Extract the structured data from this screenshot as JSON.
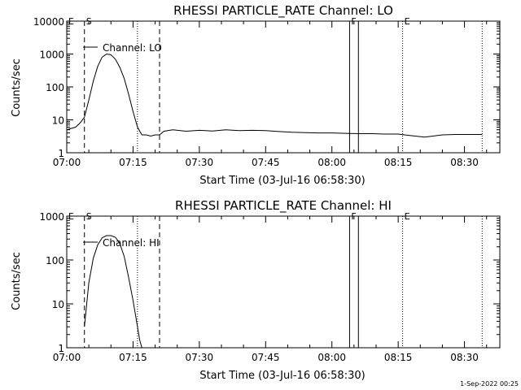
{
  "footer_stamp": "1-Sep-2022 00:25",
  "chart_data": [
    {
      "type": "line",
      "title": "RHESSI PARTICLE_RATE Channel: LO",
      "xlabel": "Start Time (03-Jul-16 06:58:30)",
      "ylabel": "Counts/sec",
      "y_scale": "log",
      "ylim": [
        1,
        10000
      ],
      "y_ticks": [
        1,
        10,
        100,
        1000,
        10000
      ],
      "y_tick_labels": [
        "1",
        "10",
        "100",
        "1000",
        "10000"
      ],
      "x_range": [
        "07:00",
        "08:38"
      ],
      "x_ticks": [
        "07:00",
        "07:15",
        "07:30",
        "07:45",
        "08:00",
        "08:15",
        "08:30"
      ],
      "legend": {
        "label": "Channel: LO",
        "placement": "top-left"
      },
      "markers": [
        {
          "label": "E",
          "time": "07:00",
          "style": "none"
        },
        {
          "label": "S",
          "time": "07:04",
          "style": "dashed"
        },
        {
          "label": "",
          "time": "07:16",
          "style": "dotted"
        },
        {
          "label": "",
          "time": "07:21",
          "style": "dashed"
        },
        {
          "label": "F",
          "time": "08:04",
          "style": "solid"
        },
        {
          "label": "",
          "time": "08:06",
          "style": "solid"
        },
        {
          "label": "E",
          "time": "08:16",
          "style": "dotted"
        },
        {
          "label": "",
          "time": "08:34",
          "style": "dotted"
        }
      ],
      "series": [
        {
          "points": [
            [
              "07:00",
              5
            ],
            [
              "07:01",
              5.5
            ],
            [
              "07:02",
              6
            ],
            [
              "07:03",
              8
            ],
            [
              "07:04",
              12
            ],
            [
              "07:05",
              40
            ],
            [
              "07:06",
              150
            ],
            [
              "07:07",
              420
            ],
            [
              "07:08",
              800
            ],
            [
              "07:09",
              1000
            ],
            [
              "07:10",
              950
            ],
            [
              "07:11",
              700
            ],
            [
              "07:12",
              400
            ],
            [
              "07:13",
              180
            ],
            [
              "07:14",
              60
            ],
            [
              "07:15",
              18
            ],
            [
              "07:16",
              6
            ],
            [
              "07:17",
              3.5
            ],
            [
              "07:18",
              3.5
            ],
            [
              "07:19",
              3.2
            ],
            [
              "07:20",
              3.5
            ],
            [
              "07:21",
              3.5
            ],
            [
              "07:22",
              4.5
            ],
            [
              "07:24",
              5
            ],
            [
              "07:27",
              4.5
            ],
            [
              "07:30",
              4.8
            ],
            [
              "07:33",
              4.6
            ],
            [
              "07:36",
              5
            ],
            [
              "07:39",
              4.7
            ],
            [
              "07:42",
              4.8
            ],
            [
              "07:45",
              4.7
            ],
            [
              "07:48",
              4.4
            ],
            [
              "07:51",
              4.2
            ],
            [
              "07:54",
              4.1
            ],
            [
              "07:57",
              4
            ],
            [
              "08:00",
              4
            ],
            [
              "08:03",
              3.9
            ],
            [
              "08:06",
              3.8
            ],
            [
              "08:09",
              3.8
            ],
            [
              "08:12",
              3.7
            ],
            [
              "08:15",
              3.7
            ],
            [
              "08:18",
              3.3
            ],
            [
              "08:21",
              3
            ],
            [
              "08:25",
              3.5
            ],
            [
              "08:28",
              3.6
            ],
            [
              "08:34",
              3.6
            ]
          ]
        }
      ]
    },
    {
      "type": "line",
      "title": "RHESSI PARTICLE_RATE Channel: HI",
      "xlabel": "Start Time (03-Jul-16 06:58:30)",
      "ylabel": "Counts/sec",
      "y_scale": "log",
      "ylim": [
        1,
        1000
      ],
      "y_ticks": [
        1,
        10,
        100,
        1000
      ],
      "y_tick_labels": [
        "1",
        "10",
        "100",
        "1000"
      ],
      "x_range": [
        "07:00",
        "08:38"
      ],
      "x_ticks": [
        "07:00",
        "07:15",
        "07:30",
        "07:45",
        "08:00",
        "08:15",
        "08:30"
      ],
      "legend": {
        "label": "Channel: HI",
        "placement": "top-left"
      },
      "markers": [
        {
          "label": "E",
          "time": "07:00",
          "style": "none"
        },
        {
          "label": "S",
          "time": "07:04",
          "style": "dashed"
        },
        {
          "label": "",
          "time": "07:16",
          "style": "dotted"
        },
        {
          "label": "",
          "time": "07:21",
          "style": "dashed"
        },
        {
          "label": "F",
          "time": "08:04",
          "style": "solid"
        },
        {
          "label": "",
          "time": "08:06",
          "style": "solid"
        },
        {
          "label": "E",
          "time": "08:16",
          "style": "dotted"
        },
        {
          "label": "",
          "time": "08:34",
          "style": "dotted"
        }
      ],
      "series": [
        {
          "points": [
            [
              "07:04",
              3
            ],
            [
              "07:05",
              30
            ],
            [
              "07:06",
              110
            ],
            [
              "07:07",
              220
            ],
            [
              "07:08",
              320
            ],
            [
              "07:09",
              360
            ],
            [
              "07:10",
              360
            ],
            [
              "07:11",
              330
            ],
            [
              "07:12",
              240
            ],
            [
              "07:13",
              120
            ],
            [
              "07:14",
              40
            ],
            [
              "07:15",
              12
            ],
            [
              "07:16",
              3
            ],
            [
              "07:16.5",
              1.5
            ],
            [
              "07:17",
              1
            ]
          ]
        }
      ]
    }
  ]
}
